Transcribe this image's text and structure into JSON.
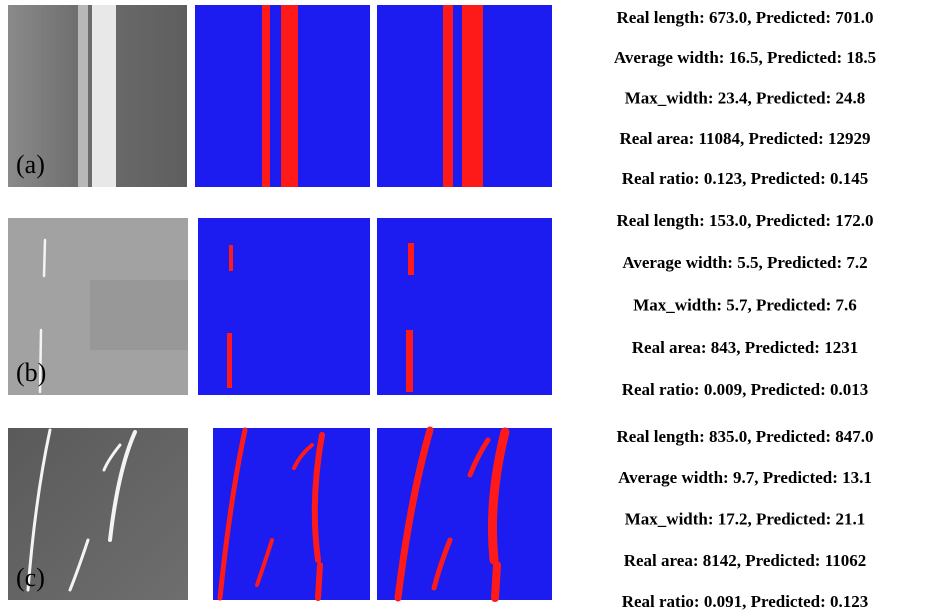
{
  "panels": [
    {
      "label": "(a)",
      "metrics": [
        "Real length: 673.0, Predicted:  701.0",
        "Average width: 16.5, Predicted: 18.5",
        "Max_width: 23.4, Predicted: 24.8",
        "Real area: 11084, Predicted: 12929",
        "Real ratio: 0.123, Predicted:  0.145"
      ]
    },
    {
      "label": "(b)",
      "metrics": [
        "Real length: 153.0, Predicted:  172.0",
        "Average width: 5.5, Predicted: 7.2",
        "Max_width: 5.7, Predicted: 7.6",
        "Real area: 843, Predicted: 1231",
        "Real ratio: 0.009, Predicted:  0.013"
      ]
    },
    {
      "label": "(c)",
      "metrics": [
        "Real length: 835.0, Predicted:  847.0",
        "Average width: 9.7, Predicted: 13.1",
        "Max_width: 17.2, Predicted: 21.1",
        "Real area: 8142, Predicted: 11062",
        "Real ratio: 0.091, Predicted:  0.123"
      ]
    }
  ]
}
